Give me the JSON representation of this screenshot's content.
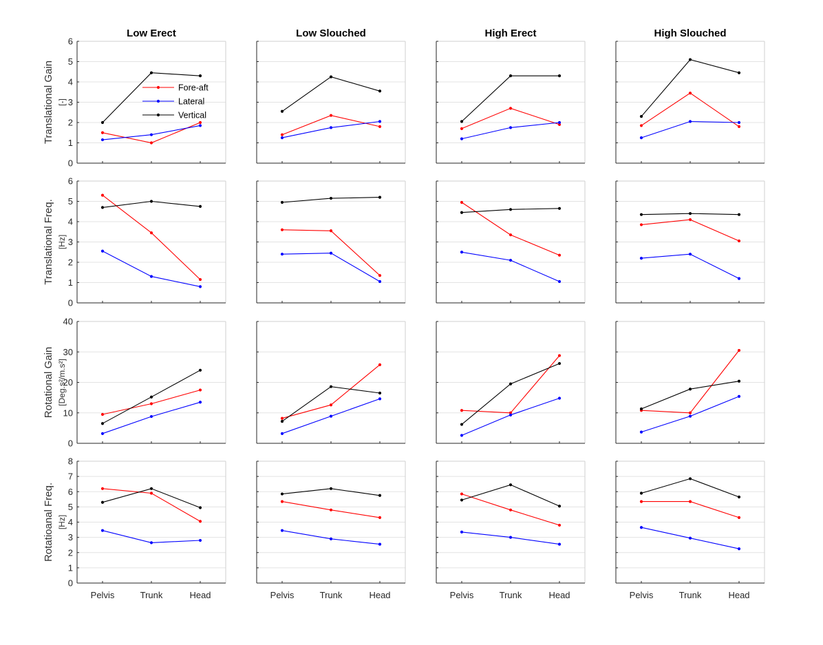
{
  "figure": {
    "columns": [
      "Low Erect",
      "Low Slouched",
      "High Erect",
      "High Slouched"
    ],
    "x_categories": [
      "Pelvis",
      "Trunk",
      "Head"
    ],
    "series": [
      {
        "name": "Fore-aft",
        "color": "#ff0000"
      },
      {
        "name": "Lateral",
        "color": "#0000ff"
      },
      {
        "name": "Vertical",
        "color": "#000000"
      }
    ],
    "legend": {
      "location": "top-left panel, inside",
      "entries": [
        "Fore-aft",
        "Lateral",
        "Vertical"
      ]
    }
  },
  "rows": [
    {
      "ylabel": "Translational Gain",
      "unit": "[-]",
      "ylim": [
        0,
        6
      ],
      "yticks": [
        0,
        1,
        2,
        3,
        4,
        5,
        6
      ]
    },
    {
      "ylabel": "Translational Freq.",
      "unit": "[Hz]",
      "ylim": [
        0,
        6
      ],
      "yticks": [
        0,
        1,
        2,
        3,
        4,
        5,
        6
      ]
    },
    {
      "ylabel": "Rotational Gain",
      "unit": "[Deg.s²/m.s²]",
      "ylim": [
        0,
        40
      ],
      "yticks": [
        0,
        10,
        20,
        30,
        40
      ]
    },
    {
      "ylabel": "Rotatioanal Freq.",
      "unit": "[Hz]",
      "ylim": [
        0,
        8
      ],
      "yticks": [
        0,
        1,
        2,
        3,
        4,
        5,
        6,
        7,
        8
      ]
    }
  ],
  "chart_data": [
    {
      "type": "line",
      "row": "Translational Gain",
      "column": "Low Erect",
      "categories": [
        "Pelvis",
        "Trunk",
        "Head"
      ],
      "ylim": [
        0,
        6
      ],
      "series": [
        {
          "name": "Fore-aft",
          "values": [
            1.5,
            1.0,
            2.0
          ]
        },
        {
          "name": "Lateral",
          "values": [
            1.15,
            1.4,
            1.85
          ]
        },
        {
          "name": "Vertical",
          "values": [
            2.0,
            4.45,
            4.3
          ]
        }
      ]
    },
    {
      "type": "line",
      "row": "Translational Gain",
      "column": "Low Slouched",
      "categories": [
        "Pelvis",
        "Trunk",
        "Head"
      ],
      "ylim": [
        0,
        6
      ],
      "series": [
        {
          "name": "Fore-aft",
          "values": [
            1.4,
            2.35,
            1.8
          ]
        },
        {
          "name": "Lateral",
          "values": [
            1.25,
            1.75,
            2.05
          ]
        },
        {
          "name": "Vertical",
          "values": [
            2.55,
            4.25,
            3.55
          ]
        }
      ]
    },
    {
      "type": "line",
      "row": "Translational Gain",
      "column": "High Erect",
      "categories": [
        "Pelvis",
        "Trunk",
        "Head"
      ],
      "ylim": [
        0,
        6
      ],
      "series": [
        {
          "name": "Fore-aft",
          "values": [
            1.7,
            2.7,
            1.9
          ]
        },
        {
          "name": "Lateral",
          "values": [
            1.2,
            1.75,
            2.0
          ]
        },
        {
          "name": "Vertical",
          "values": [
            2.05,
            4.3,
            4.3
          ]
        }
      ]
    },
    {
      "type": "line",
      "row": "Translational Gain",
      "column": "High Slouched",
      "categories": [
        "Pelvis",
        "Trunk",
        "Head"
      ],
      "ylim": [
        0,
        6
      ],
      "series": [
        {
          "name": "Fore-aft",
          "values": [
            1.85,
            3.45,
            1.8
          ]
        },
        {
          "name": "Lateral",
          "values": [
            1.25,
            2.05,
            2.0
          ]
        },
        {
          "name": "Vertical",
          "values": [
            2.3,
            5.1,
            4.45
          ]
        }
      ]
    },
    {
      "type": "line",
      "row": "Translational Freq.",
      "column": "Low Erect",
      "categories": [
        "Pelvis",
        "Trunk",
        "Head"
      ],
      "ylim": [
        0,
        6
      ],
      "series": [
        {
          "name": "Fore-aft",
          "values": [
            5.3,
            3.45,
            1.15
          ]
        },
        {
          "name": "Lateral",
          "values": [
            2.55,
            1.3,
            0.8
          ]
        },
        {
          "name": "Vertical",
          "values": [
            4.7,
            5.0,
            4.75
          ]
        }
      ]
    },
    {
      "type": "line",
      "row": "Translational Freq.",
      "column": "Low Slouched",
      "categories": [
        "Pelvis",
        "Trunk",
        "Head"
      ],
      "ylim": [
        0,
        6
      ],
      "series": [
        {
          "name": "Fore-aft",
          "values": [
            3.6,
            3.55,
            1.35
          ]
        },
        {
          "name": "Lateral",
          "values": [
            2.4,
            2.45,
            1.05
          ]
        },
        {
          "name": "Vertical",
          "values": [
            4.95,
            5.15,
            5.2
          ]
        }
      ]
    },
    {
      "type": "line",
      "row": "Translational Freq.",
      "column": "High Erect",
      "categories": [
        "Pelvis",
        "Trunk",
        "Head"
      ],
      "ylim": [
        0,
        6
      ],
      "series": [
        {
          "name": "Fore-aft",
          "values": [
            4.95,
            3.35,
            2.35
          ]
        },
        {
          "name": "Lateral",
          "values": [
            2.5,
            2.1,
            1.05
          ]
        },
        {
          "name": "Vertical",
          "values": [
            4.45,
            4.6,
            4.65
          ]
        }
      ]
    },
    {
      "type": "line",
      "row": "Translational Freq.",
      "column": "High Slouched",
      "categories": [
        "Pelvis",
        "Trunk",
        "Head"
      ],
      "ylim": [
        0,
        6
      ],
      "series": [
        {
          "name": "Fore-aft",
          "values": [
            3.85,
            4.1,
            3.05
          ]
        },
        {
          "name": "Lateral",
          "values": [
            2.2,
            2.4,
            1.2
          ]
        },
        {
          "name": "Vertical",
          "values": [
            4.35,
            4.4,
            4.35
          ]
        }
      ]
    },
    {
      "type": "line",
      "row": "Rotational Gain",
      "column": "Low Erect",
      "categories": [
        "Pelvis",
        "Trunk",
        "Head"
      ],
      "ylim": [
        0,
        40
      ],
      "series": [
        {
          "name": "Fore-aft",
          "values": [
            9.5,
            13.0,
            17.5
          ]
        },
        {
          "name": "Lateral",
          "values": [
            3.2,
            8.8,
            13.5
          ]
        },
        {
          "name": "Vertical",
          "values": [
            6.5,
            15.2,
            24.0
          ]
        }
      ]
    },
    {
      "type": "line",
      "row": "Rotational Gain",
      "column": "Low Slouched",
      "categories": [
        "Pelvis",
        "Trunk",
        "Head"
      ],
      "ylim": [
        0,
        40
      ],
      "series": [
        {
          "name": "Fore-aft",
          "values": [
            8.2,
            12.6,
            25.8
          ]
        },
        {
          "name": "Lateral",
          "values": [
            3.2,
            8.9,
            14.6
          ]
        },
        {
          "name": "Vertical",
          "values": [
            7.2,
            18.6,
            16.5
          ]
        }
      ]
    },
    {
      "type": "line",
      "row": "Rotational Gain",
      "column": "High Erect",
      "categories": [
        "Pelvis",
        "Trunk",
        "Head"
      ],
      "ylim": [
        0,
        40
      ],
      "series": [
        {
          "name": "Fore-aft",
          "values": [
            10.8,
            10.0,
            28.8
          ]
        },
        {
          "name": "Lateral",
          "values": [
            2.6,
            9.3,
            14.8
          ]
        },
        {
          "name": "Vertical",
          "values": [
            6.2,
            19.5,
            26.2
          ]
        }
      ]
    },
    {
      "type": "line",
      "row": "Rotational Gain",
      "column": "High Slouched",
      "categories": [
        "Pelvis",
        "Trunk",
        "Head"
      ],
      "ylim": [
        0,
        40
      ],
      "series": [
        {
          "name": "Fore-aft",
          "values": [
            10.8,
            10.0,
            30.5
          ]
        },
        {
          "name": "Lateral",
          "values": [
            3.7,
            8.9,
            15.4
          ]
        },
        {
          "name": "Vertical",
          "values": [
            11.3,
            17.8,
            20.4
          ]
        }
      ]
    },
    {
      "type": "line",
      "row": "Rotatioanal Freq.",
      "column": "Low Erect",
      "categories": [
        "Pelvis",
        "Trunk",
        "Head"
      ],
      "ylim": [
        0,
        8
      ],
      "series": [
        {
          "name": "Fore-aft",
          "values": [
            6.2,
            5.9,
            4.05
          ]
        },
        {
          "name": "Lateral",
          "values": [
            3.45,
            2.65,
            2.8
          ]
        },
        {
          "name": "Vertical",
          "values": [
            5.3,
            6.2,
            4.95
          ]
        }
      ]
    },
    {
      "type": "line",
      "row": "Rotatioanal Freq.",
      "column": "Low Slouched",
      "categories": [
        "Pelvis",
        "Trunk",
        "Head"
      ],
      "ylim": [
        0,
        8
      ],
      "series": [
        {
          "name": "Fore-aft",
          "values": [
            5.35,
            4.8,
            4.3
          ]
        },
        {
          "name": "Lateral",
          "values": [
            3.45,
            2.9,
            2.55
          ]
        },
        {
          "name": "Vertical",
          "values": [
            5.85,
            6.2,
            5.75
          ]
        }
      ]
    },
    {
      "type": "line",
      "row": "Rotatioanal Freq.",
      "column": "High Erect",
      "categories": [
        "Pelvis",
        "Trunk",
        "Head"
      ],
      "ylim": [
        0,
        8
      ],
      "series": [
        {
          "name": "Fore-aft",
          "values": [
            5.85,
            4.8,
            3.8
          ]
        },
        {
          "name": "Lateral",
          "values": [
            3.35,
            3.0,
            2.55
          ]
        },
        {
          "name": "Vertical",
          "values": [
            5.45,
            6.45,
            5.05
          ]
        }
      ]
    },
    {
      "type": "line",
      "row": "Rotatioanal Freq.",
      "column": "High Slouched",
      "categories": [
        "Pelvis",
        "Trunk",
        "Head"
      ],
      "ylim": [
        0,
        8
      ],
      "series": [
        {
          "name": "Fore-aft",
          "values": [
            5.35,
            5.35,
            4.3
          ]
        },
        {
          "name": "Lateral",
          "values": [
            3.65,
            2.95,
            2.25
          ]
        },
        {
          "name": "Vertical",
          "values": [
            5.9,
            6.85,
            5.65
          ]
        }
      ]
    }
  ]
}
